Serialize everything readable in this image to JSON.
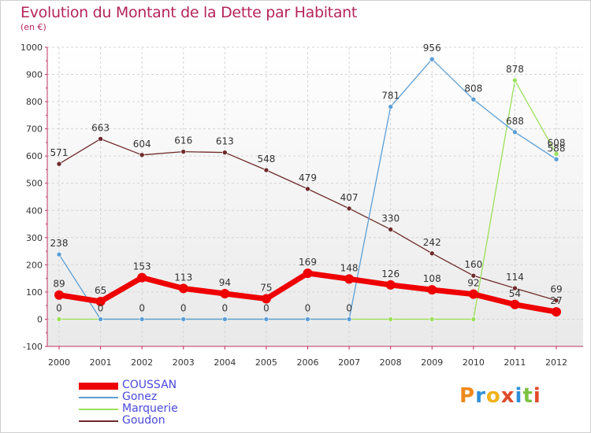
{
  "title": "Evolution du Montant de la Dette par Habitant",
  "subtitle": "(en €)",
  "logo": "Proxiti",
  "chart_data": {
    "type": "line",
    "title": "Evolution du Montant de la Dette par Habitant",
    "ylabel": "(en €)",
    "xlabel": "",
    "x": [
      "2000",
      "2001",
      "2002",
      "2003",
      "2004",
      "2005",
      "2006",
      "2007",
      "2008",
      "2009",
      "2010",
      "2011",
      "2012"
    ],
    "ylim": [
      -100,
      1000
    ],
    "yticks": [
      -100,
      0,
      100,
      200,
      300,
      400,
      500,
      600,
      700,
      800,
      900,
      1000
    ],
    "grid": true,
    "legend_position": "bottom-left",
    "series": [
      {
        "name": "COUSSAN",
        "color": "#ee0000",
        "values": [
          89,
          65,
          153,
          113,
          94,
          75,
          169,
          148,
          126,
          108,
          92,
          54,
          27
        ],
        "labels": [
          "89",
          "65",
          "153",
          "113",
          "94",
          "75",
          "169",
          "148",
          "126",
          "108",
          "92",
          "54",
          "27"
        ]
      },
      {
        "name": "Gonez",
        "color": "#5b9fd6",
        "values": [
          238,
          0,
          0,
          0,
          0,
          0,
          0,
          0,
          781,
          956,
          808,
          688,
          588
        ],
        "labels": [
          "238",
          "0",
          "0",
          "0",
          "0",
          "0",
          "0",
          "0",
          "781",
          "956",
          "808",
          "688",
          "588"
        ]
      },
      {
        "name": "Marquerie",
        "color": "#9be05a",
        "values": [
          0,
          0,
          0,
          0,
          0,
          0,
          0,
          0,
          0,
          0,
          0,
          878,
          608
        ],
        "labels": [
          "0",
          "",
          "",
          "",
          "",
          "",
          "",
          "",
          "",
          "",
          "",
          "878",
          "608"
        ]
      },
      {
        "name": "Goudon",
        "color": "#6e2a2a",
        "values": [
          571,
          663,
          604,
          616,
          613,
          548,
          479,
          407,
          330,
          242,
          160,
          114,
          69
        ],
        "labels": [
          "571",
          "663",
          "604",
          "616",
          "613",
          "548",
          "479",
          "407",
          "330",
          "242",
          "160",
          "114",
          "69"
        ]
      }
    ]
  }
}
